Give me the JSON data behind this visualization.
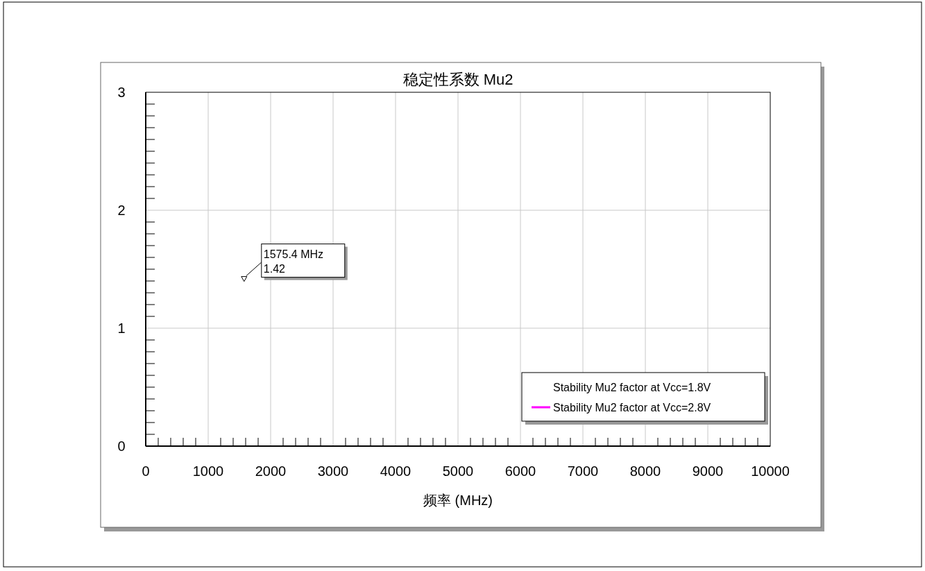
{
  "chart_data": {
    "type": "line",
    "title": "稳定性系数 Mu2",
    "xlabel": "频率 (MHz)",
    "series": [
      {
        "name": "Stability Mu2 factor at Vcc=1.8V"
      },
      {
        "name": "Stability Mu2 factor at Vcc=2.8V",
        "color": "#ff00ff"
      },
      {
        "type": "scatter",
        "x": [
          1575.4
        ],
        "values": [
          1.42
        ],
        "color": "#000000",
        "marker": "triangle"
      }
    ],
    "annotations": [
      {
        "text": "1575.4 MHz\n1.42",
        "x": 1575.4,
        "y": 1.42
      }
    ],
    "xlim": [
      0,
      10000
    ],
    "ylim": [
      0,
      3
    ],
    "xticks": [
      0,
      {
        "value": 200,
        "label": null
      },
      {
        "value": 400,
        "label": null
      },
      {
        "value": 600,
        "label": null
      },
      {
        "value": 800,
        "label": null
      },
      1000,
      {
        "value": 1200,
        "label": null
      },
      {
        "value": 1400,
        "label": null
      },
      {
        "value": 1600,
        "label": null
      },
      {
        "value": 1800,
        "label": null
      },
      2000,
      {
        "value": 2200,
        "label": null
      },
      {
        "value": 2400,
        "label": null
      },
      {
        "value": 2600,
        "label": null
      },
      {
        "value": 2800,
        "label": null
      },
      3000,
      {
        "value": 3200,
        "label": null
      },
      {
        "value": 3400,
        "label": null
      },
      {
        "value": 3600,
        "label": null
      },
      {
        "value": 3800,
        "label": null
      },
      4000,
      {
        "value": 4200,
        "label": null
      },
      {
        "value": 4400,
        "label": null
      },
      {
        "value": 4600,
        "label": null
      },
      {
        "value": 4800,
        "label": null
      },
      5000,
      {
        "value": 5200,
        "label": null
      },
      {
        "value": 5400,
        "label": null
      },
      {
        "value": 5600,
        "label": null
      },
      {
        "value": 5800,
        "label": null
      },
      6000,
      {
        "value": 6200,
        "label": null
      },
      {
        "value": 6400,
        "label": null
      },
      {
        "value": 6600,
        "label": null
      },
      {
        "value": 6800,
        "label": null
      },
      7000,
      {
        "value": 7200,
        "label": null
      },
      {
        "value": 7400,
        "label": null
      },
      {
        "value": 7600,
        "label": null
      },
      {
        "value": 7800,
        "label": null
      },
      8000,
      {
        "value": 8200,
        "label": null
      },
      {
        "value": 8400,
        "label": null
      },
      {
        "value": 8600,
        "label": null
      },
      {
        "value": 8800,
        "label": null
      },
      9000,
      {
        "value": 9200,
        "label": null
      },
      {
        "value": 9400,
        "label": null
      },
      {
        "value": 9600,
        "label": null
      },
      {
        "value": 9800,
        "label": null
      },
      10000
    ],
    "yticks": [
      0,
      {
        "value": 0.1,
        "label": null
      },
      {
        "value": 0.2,
        "label": null
      },
      {
        "value": 0.3,
        "label": null
      },
      {
        "value": 0.4,
        "label": null
      },
      {
        "value": 0.5,
        "label": null
      },
      {
        "value": 0.6,
        "label": null
      },
      {
        "value": 0.7,
        "label": null
      },
      {
        "value": 0.8,
        "label": null
      },
      {
        "value": 0.9,
        "label": null
      },
      1,
      {
        "value": 1.1,
        "label": null
      },
      {
        "value": 1.2,
        "label": null
      },
      {
        "value": 1.3,
        "label": null
      },
      {
        "value": 1.4,
        "label": null
      },
      {
        "value": 1.5,
        "label": null
      },
      {
        "value": 1.6,
        "label": null
      },
      {
        "value": 1.7,
        "label": null
      },
      {
        "value": 1.8,
        "label": null
      },
      {
        "value": 1.9,
        "label": null
      },
      2,
      {
        "value": 2.1,
        "label": null
      },
      {
        "value": 2.2,
        "label": null
      },
      {
        "value": 2.3,
        "label": null
      },
      {
        "value": 2.4,
        "label": null
      },
      {
        "value": 2.5,
        "label": null
      },
      {
        "value": 2.6,
        "label": null
      },
      {
        "value": 2.7,
        "label": null
      },
      {
        "value": 2.8,
        "label": null
      },
      {
        "value": 2.9,
        "label": null
      },
      3
    ],
    "grid": true,
    "legend": "bottom right"
  }
}
